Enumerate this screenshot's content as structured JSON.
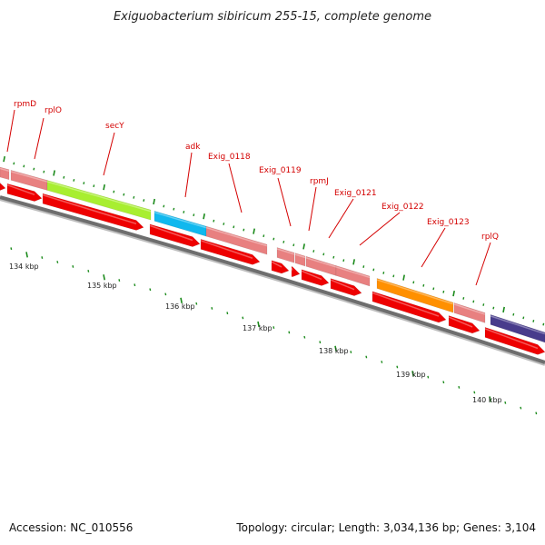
{
  "title": "Exiguobacterium sibiricum 255-15, complete genome",
  "footer": {
    "accession": "Accession: NC_010556",
    "summary": "Topology: circular; Length: 3,034,136 bp; Genes: 3,104"
  },
  "colors": {
    "label_red": "#d40000",
    "cds_red": "#ee0000",
    "gene_pink": "#e88080",
    "green": "#a8ee30",
    "cyan": "#10b8ee",
    "orange": "#ff9000",
    "purple": "#483c8c",
    "backbone": "#6e6e6e",
    "tick_green": "#1a8a1a"
  },
  "genes": [
    {
      "name": "",
      "color": "pink"
    },
    {
      "name": "rpmD",
      "color": "pink"
    },
    {
      "name": "rplO",
      "color": "pink"
    },
    {
      "name": "secY",
      "color": "green"
    },
    {
      "name": "adk",
      "color": "cyan"
    },
    {
      "name": "Exig_0118",
      "color": "pink"
    },
    {
      "name": "Exig_0119",
      "color": "pink"
    },
    {
      "name": "rpmJ",
      "color": "pink"
    },
    {
      "name": "Exig_0121",
      "color": "pink"
    },
    {
      "name": "Exig_0122",
      "color": "pink"
    },
    {
      "name": "Exig_0123",
      "color": "orange"
    },
    {
      "name": "rplQ",
      "color": "pink"
    },
    {
      "name": "",
      "color": "purple"
    }
  ],
  "labels": [
    "rpmD",
    "rplO",
    "secY",
    "adk",
    "Exig_0118",
    "Exig_0119",
    "rpmJ",
    "Exig_0121",
    "Exig_0122",
    "Exig_0123",
    "rplQ"
  ],
  "scale_ticks": [
    "134 kbp",
    "135 kbp",
    "136 kbp",
    "137 kbp",
    "138 kbp",
    "139 kbp",
    "140 kbp"
  ]
}
